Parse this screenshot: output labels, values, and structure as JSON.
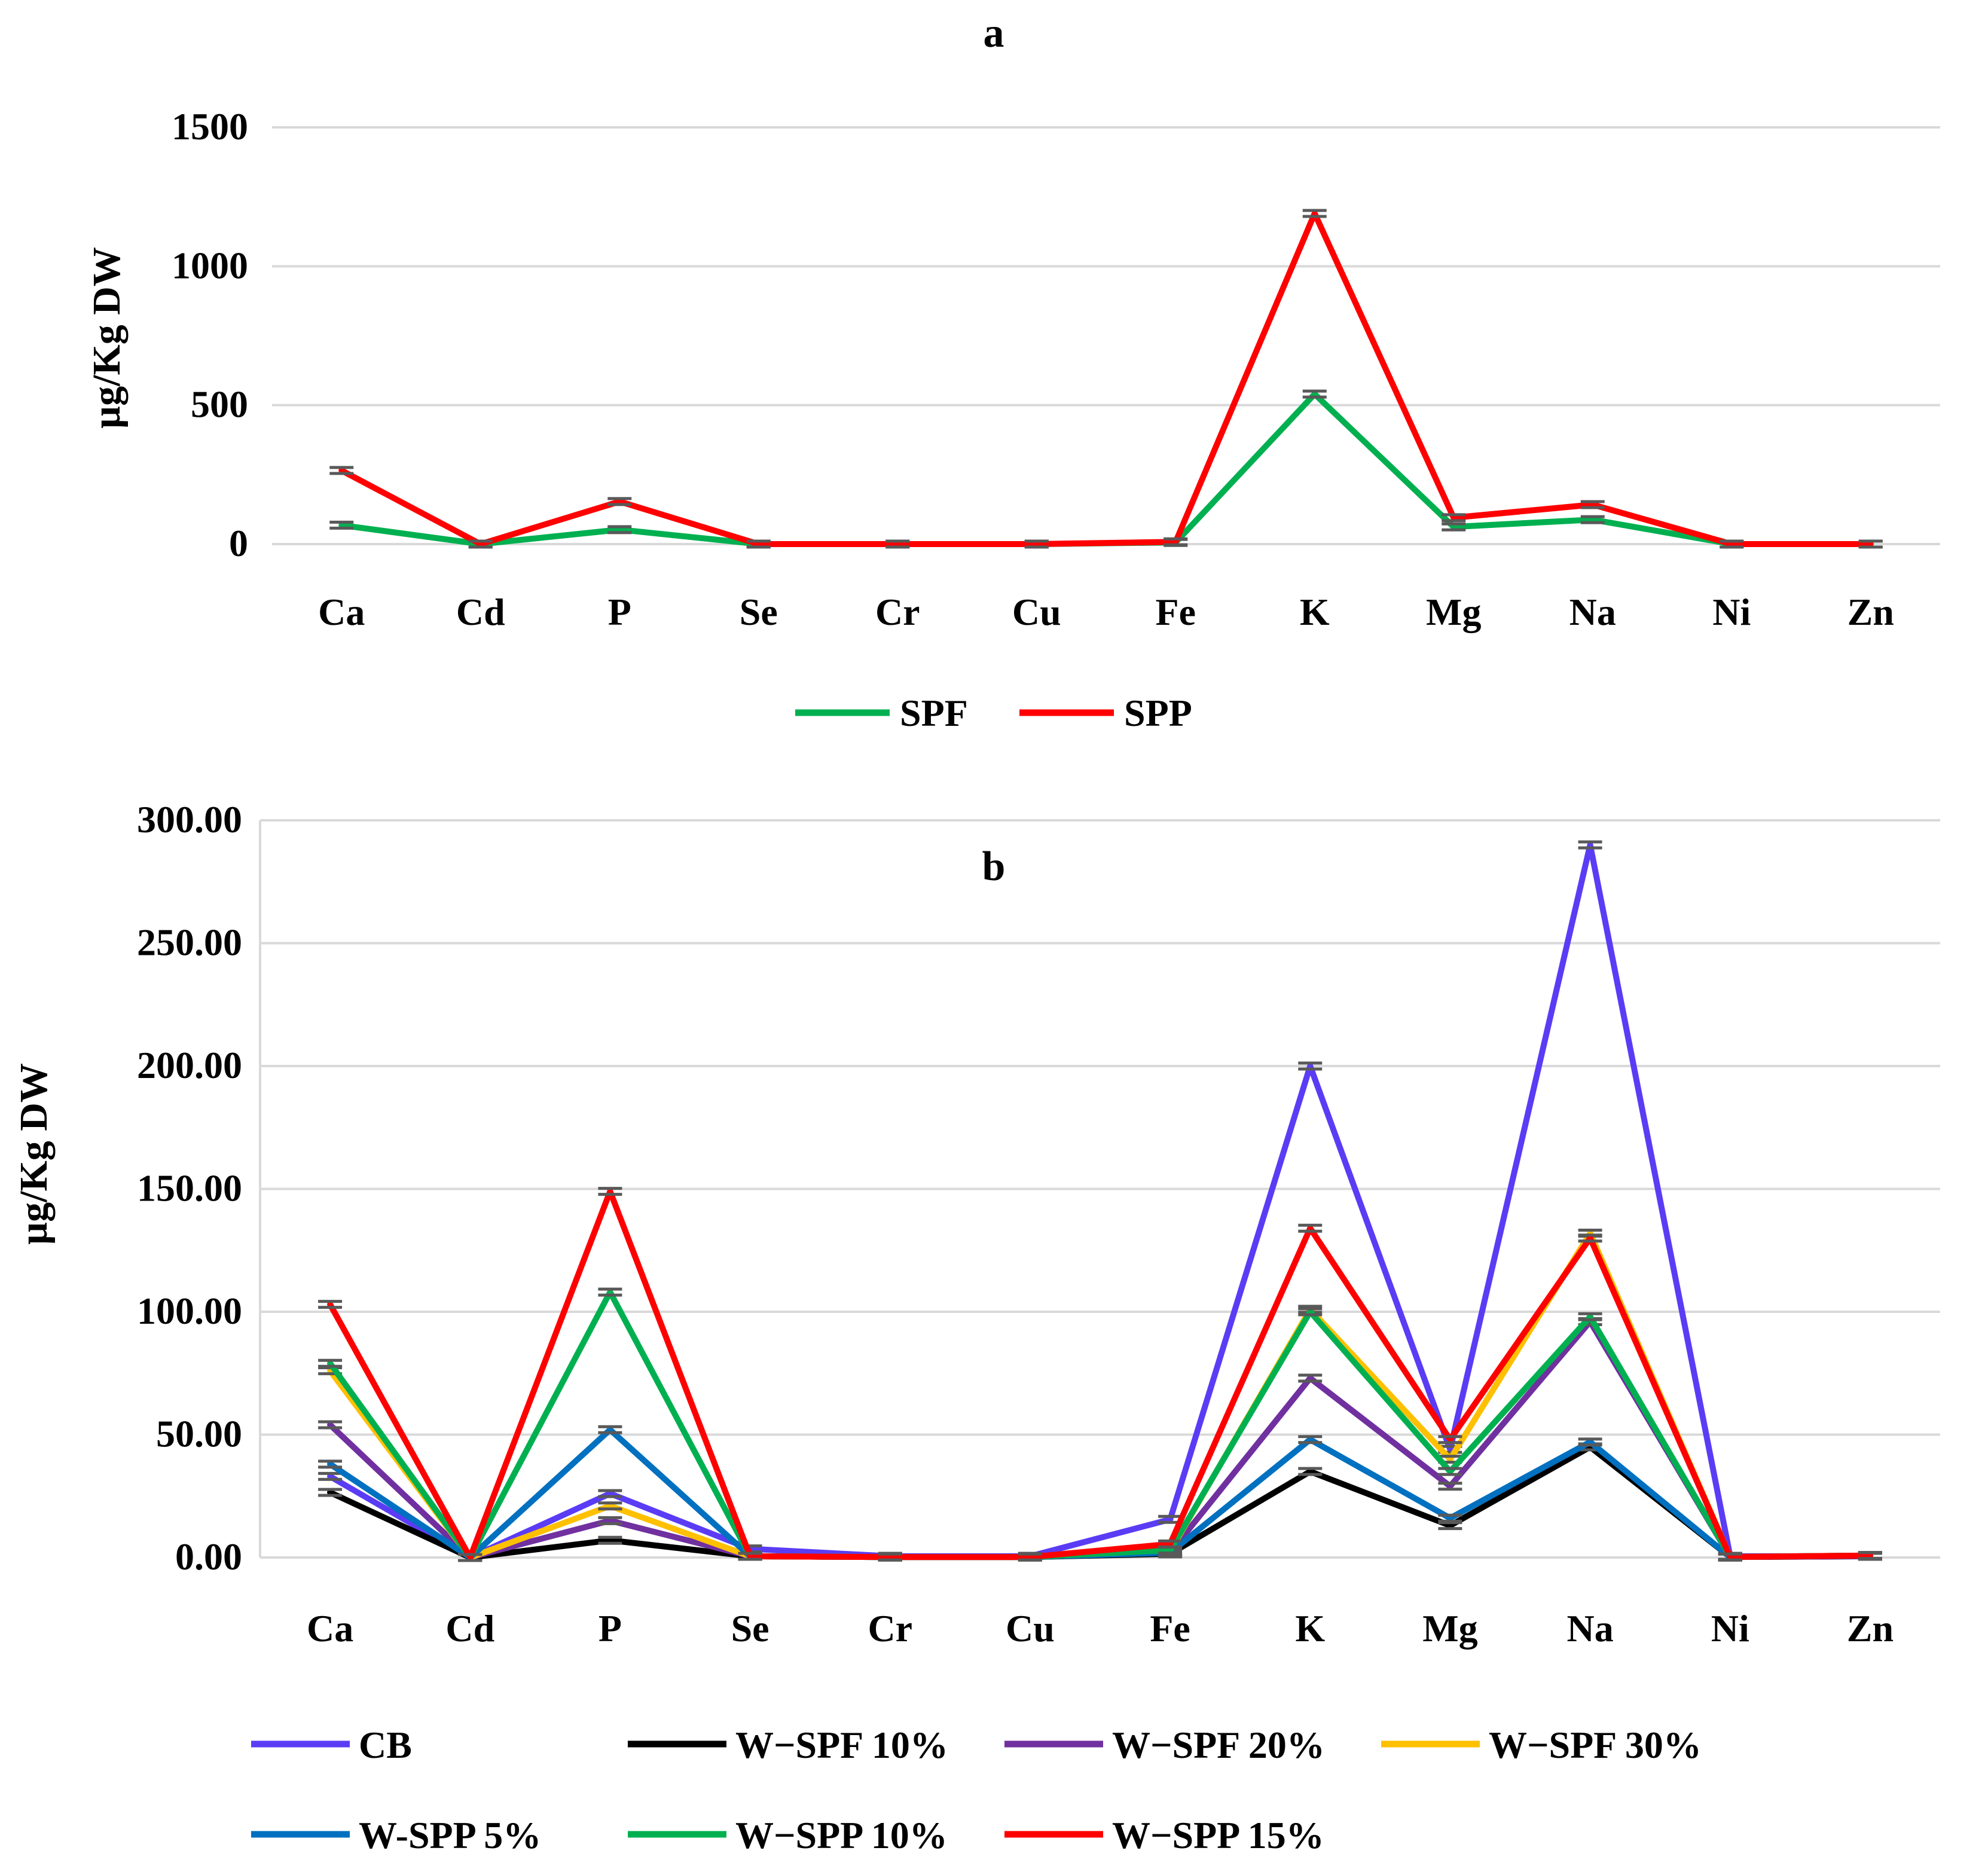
{
  "chart_data": [
    {
      "type": "line",
      "title": "a",
      "xlabel": "",
      "ylabel": "µg/Kg DW",
      "ylim": [
        0,
        1500
      ],
      "yticks": [
        0,
        500,
        1000,
        1500
      ],
      "ytick_labels": [
        "0",
        "500",
        "1000",
        "1500"
      ],
      "grid": true,
      "legend_position": "bottom",
      "categories": [
        "Ca",
        "Cd",
        "P",
        "Se",
        "Cr",
        "Cu",
        "Fe",
        "K",
        "Mg",
        "Na",
        "Ni",
        "Zn"
      ],
      "series": [
        {
          "name": "SPF",
          "color": "#00b050",
          "values": [
            68,
            0,
            52,
            0,
            0,
            0,
            6,
            540,
            62,
            88,
            0,
            0
          ]
        },
        {
          "name": "SPP",
          "color": "#ff0000",
          "values": [
            265,
            0,
            153,
            0,
            0,
            0,
            8,
            1190,
            95,
            142,
            0,
            0
          ]
        }
      ]
    },
    {
      "type": "line",
      "title": "b",
      "xlabel": "",
      "ylabel": "µg/Kg DW",
      "ylim": [
        0,
        300
      ],
      "yticks": [
        0,
        50,
        100,
        150,
        200,
        250,
        300
      ],
      "ytick_labels": [
        "0.00",
        "50.00",
        "100.00",
        "150.00",
        "200.00",
        "250.00",
        "300.00"
      ],
      "grid": true,
      "legend_position": "bottom",
      "categories": [
        "Ca",
        "Cd",
        "P",
        "Se",
        "Cr",
        "Cu",
        "Fe",
        "K",
        "Mg",
        "Na",
        "Ni",
        "Zn"
      ],
      "series": [
        {
          "name": "CB",
          "color": "#5b3cf5",
          "values": [
            33,
            0,
            26,
            3.5,
            0.5,
            0.5,
            15.5,
            200,
            44,
            290,
            0.5,
            0.5
          ]
        },
        {
          "name": "W−SPF 10%",
          "color": "#000000",
          "values": [
            26.5,
            0,
            7,
            0.5,
            0.2,
            0.2,
            1.5,
            35,
            13,
            45,
            0.2,
            0.5
          ]
        },
        {
          "name": "W−SPF 20%",
          "color": "#7030a0",
          "values": [
            54,
            0,
            15,
            0.5,
            0.2,
            0.2,
            2,
            73,
            29,
            96,
            0.2,
            0.5
          ]
        },
        {
          "name": "W−SPF 30%",
          "color": "#ffc000",
          "values": [
            76,
            0,
            21,
            0.5,
            0.2,
            0.2,
            2.5,
            101,
            40,
            132,
            0.2,
            0.8
          ]
        },
        {
          "name": "W-SPP 5%",
          "color": "#0070c0",
          "values": [
            38,
            0,
            52,
            0.5,
            0.2,
            0.2,
            2,
            48,
            16,
            47,
            0.2,
            0.8
          ]
        },
        {
          "name": "W−SPP 10%",
          "color": "#00b050",
          "values": [
            79,
            0,
            108,
            0.5,
            0.2,
            0.2,
            3,
            100,
            35,
            98,
            0.2,
            0.8
          ]
        },
        {
          "name": "W−SPP 15%",
          "color": "#ff0000",
          "values": [
            103,
            0,
            149,
            0.5,
            0.2,
            0.2,
            5.5,
            134,
            48,
            130,
            0.2,
            0.8
          ]
        }
      ]
    }
  ]
}
